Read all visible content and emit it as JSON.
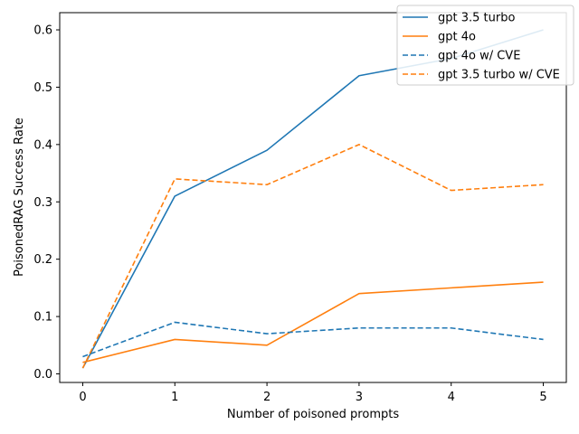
{
  "chart_data": {
    "type": "line",
    "title": "",
    "xlabel": "Number of poisoned prompts",
    "ylabel": "PoisonedRAG Success Rate",
    "x": [
      0,
      1,
      2,
      3,
      4,
      5
    ],
    "xlim": [
      -0.25,
      5.25
    ],
    "ylim": [
      -0.015,
      0.63
    ],
    "xticks": [
      0,
      1,
      2,
      3,
      4,
      5
    ],
    "yticks": [
      0.0,
      0.1,
      0.2,
      0.3,
      0.4,
      0.5,
      0.6
    ],
    "ytick_labels": [
      "0.0",
      "0.1",
      "0.2",
      "0.3",
      "0.4",
      "0.5",
      "0.6"
    ],
    "grid": false,
    "legend_position": "top-right",
    "series": [
      {
        "name": "gpt 3.5 turbo",
        "values": [
          0.01,
          0.31,
          0.39,
          0.52,
          0.55,
          0.6
        ],
        "color": "#1f77b4",
        "style": "solid"
      },
      {
        "name": "gpt 4o",
        "values": [
          0.02,
          0.06,
          0.05,
          0.14,
          0.15,
          0.16
        ],
        "color": "#ff7f0e",
        "style": "solid"
      },
      {
        "name": "gpt 4o w/ CVE",
        "values": [
          0.03,
          0.09,
          0.07,
          0.08,
          0.08,
          0.06
        ],
        "color": "#1f77b4",
        "style": "dashed"
      },
      {
        "name": "gpt 3.5 turbo w/ CVE",
        "values": [
          0.01,
          0.34,
          0.33,
          0.4,
          0.32,
          0.33
        ],
        "color": "#ff7f0e",
        "style": "dashed"
      }
    ]
  }
}
